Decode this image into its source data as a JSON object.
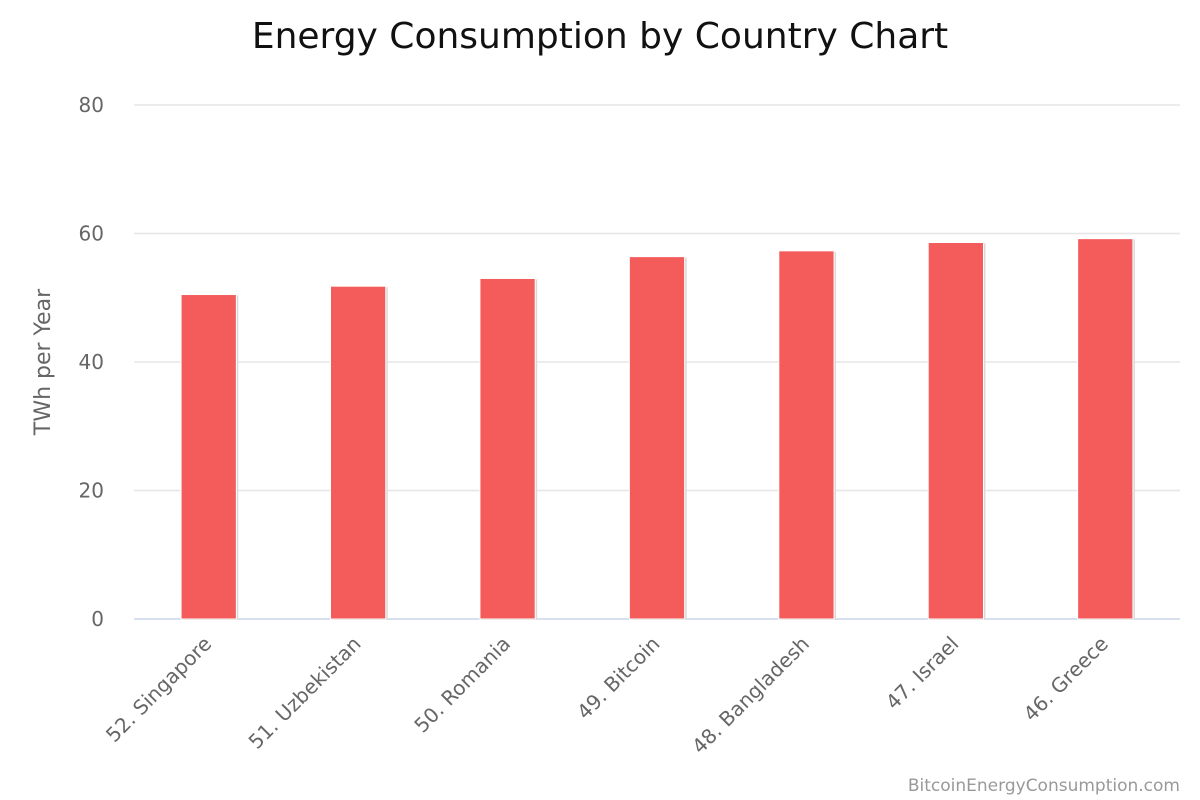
{
  "chart_data": {
    "type": "bar",
    "title": "Energy Consumption by Country Chart",
    "xlabel": "",
    "ylabel": "TWh per Year",
    "categories": [
      "52. Singapore",
      "51. Uzbekistan",
      "50. Romania",
      "49. Bitcoin",
      "48. Bangladesh",
      "47. Israel",
      "46. Greece"
    ],
    "values": [
      50.5,
      51.8,
      53.0,
      56.4,
      57.3,
      58.6,
      59.2
    ],
    "ylim": [
      0,
      80
    ],
    "yticks": [
      0,
      20,
      40,
      60,
      80
    ],
    "grid": true,
    "legend": "none",
    "bar_color": "#f45b5b"
  },
  "credit": "BitcoinEnergyConsumption.com"
}
